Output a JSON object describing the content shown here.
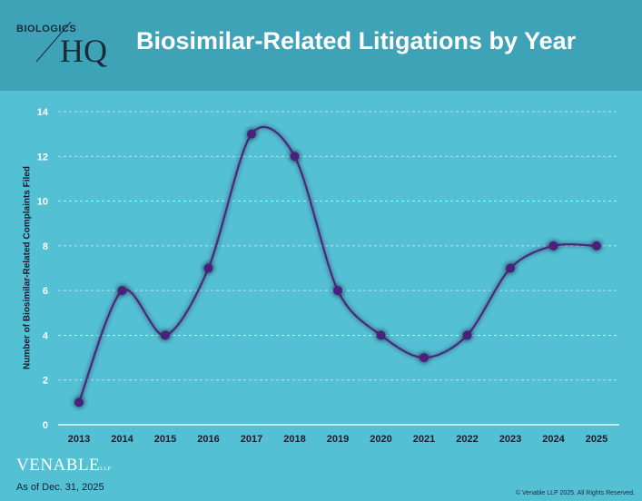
{
  "header": {
    "logo_top": "BIOLOGICS",
    "logo_hq": "HQ",
    "title": "Biosimilar-Related Litigations by Year"
  },
  "footer": {
    "brand": "VENABLE",
    "brand_suffix": "LLP",
    "as_of": "As of Dec. 31, 2025",
    "copyright": "© Venable LLP 2025. All Rights Reserved."
  },
  "colors": {
    "background": "#54c0d4",
    "header": "#3fa3b8",
    "line": "#4a2a7a",
    "marker": "#4a1f7e"
  },
  "chart_data": {
    "type": "line",
    "title": "Biosimilar-Related Litigations by Year",
    "xlabel": "",
    "ylabel": "Number of Biosimilar-Related Complaints Filed",
    "categories": [
      "2013",
      "2014",
      "2015",
      "2016",
      "2017",
      "2018",
      "2019",
      "2020",
      "2021",
      "2022",
      "2023",
      "2024",
      "2025"
    ],
    "values": [
      1,
      6,
      4,
      7,
      13,
      12,
      6,
      4,
      3,
      4,
      7,
      8,
      8
    ],
    "ylim": [
      0,
      14
    ],
    "yticks": [
      0,
      2,
      4,
      6,
      8,
      10,
      12,
      14
    ],
    "grid": "horizontal dashed",
    "legend": "none"
  }
}
